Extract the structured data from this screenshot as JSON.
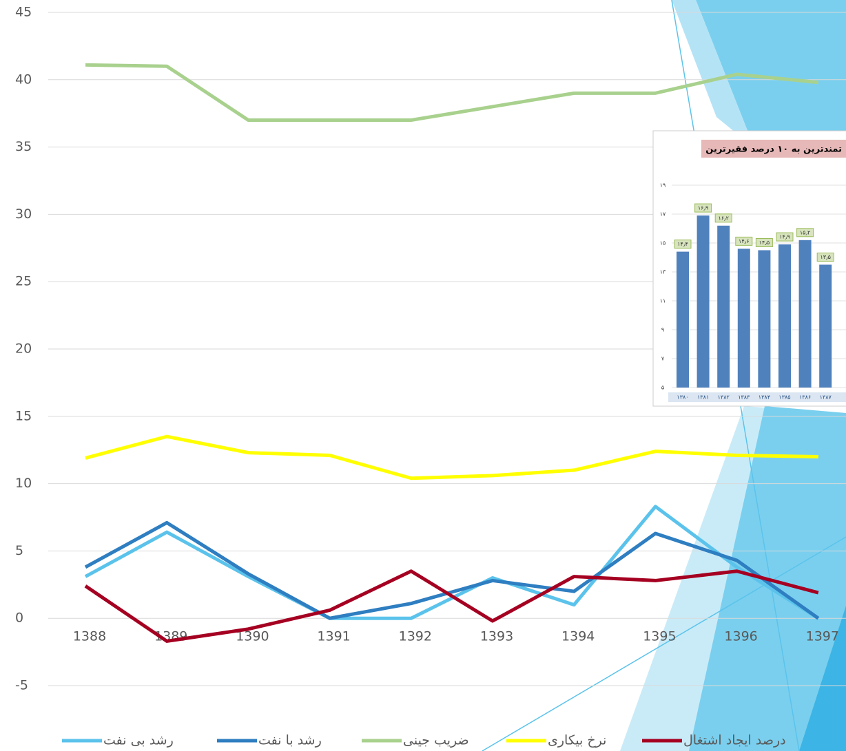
{
  "chart_data": [
    {
      "type": "line",
      "categories": [
        "1388",
        "1389",
        "1390",
        "1391",
        "1392",
        "1393",
        "1394",
        "1395",
        "1396",
        "1397"
      ],
      "series": [
        {
          "name": "رشد بی نفت",
          "color": "#5BC3EB",
          "values": [
            3.1,
            6.4,
            3.1,
            0,
            0,
            3.0,
            1.0,
            8.3,
            3.8,
            0
          ]
        },
        {
          "name": "رشد با نفت",
          "color": "#2E7EC1",
          "values": [
            3.8,
            7.1,
            3.3,
            0,
            1.1,
            2.8,
            2.0,
            6.3,
            4.3,
            0
          ]
        },
        {
          "name": "ضریب جینی",
          "color": "#A9D18E",
          "values": [
            41.1,
            41.0,
            37.0,
            37.0,
            37.0,
            38.0,
            39.0,
            39.0,
            40.4,
            39.8
          ]
        },
        {
          "name": "نرخ بیکاری",
          "color": "#FFFF00",
          "values": [
            11.9,
            13.5,
            12.3,
            12.1,
            10.4,
            10.6,
            11.0,
            12.4,
            12.1,
            12.0
          ]
        },
        {
          "name": "درصد ایجاد اشتغال",
          "color": "#A50021",
          "values": [
            2.4,
            -1.7,
            -0.8,
            0.6,
            3.5,
            -0.2,
            3.1,
            2.8,
            3.5,
            1.9
          ]
        }
      ],
      "ylim": [
        -5,
        45
      ],
      "yticks": [
        -5,
        0,
        5,
        10,
        15,
        20,
        25,
        30,
        35,
        40,
        45
      ],
      "grid": true
    },
    {
      "type": "bar",
      "title": "تمندترین به ۱۰ درصد فقیرترین",
      "categories": [
        "۱۳۸۰",
        "۱۳۸۱",
        "۱۳۸۲",
        "۱۳۸۳",
        "۱۳۸۴",
        "۱۳۸۵",
        "۱۳۸۶",
        "۱۳۸۷"
      ],
      "values": [
        14.4,
        16.9,
        16.2,
        14.6,
        14.5,
        14.9,
        15.2,
        13.5
      ],
      "value_labels": [
        "۱۴٫۴",
        "۱۶٫۹",
        "۱۶٫۲",
        "۱۴٫۶",
        "۱۴٫۵",
        "۱۴٫۹",
        "۱۵٫۲",
        "۱۳٫۵"
      ],
      "color": "#4F81BD",
      "ylim": [
        5,
        19
      ],
      "yticks": [
        {
          "value": 5,
          "label": "۵"
        },
        {
          "value": 7,
          "label": "۷"
        },
        {
          "value": 9,
          "label": "۹"
        },
        {
          "value": 11,
          "label": "۱۱"
        },
        {
          "value": 13,
          "label": "۱۳"
        },
        {
          "value": 15,
          "label": "۱۵"
        },
        {
          "value": 17,
          "label": "۱۷"
        },
        {
          "value": 19,
          "label": "۱۹"
        }
      ],
      "grid": true
    }
  ]
}
